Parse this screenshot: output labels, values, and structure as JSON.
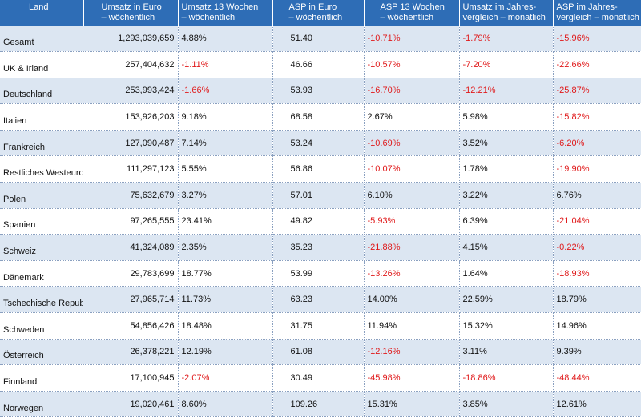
{
  "headers": [
    [
      "Land",
      ""
    ],
    [
      "Umsatz in Euro",
      "– wöchentlich"
    ],
    [
      "Umsatz 13 Wochen",
      "– wöchentlich"
    ],
    [
      "ASP in Euro",
      "– wöchentlich"
    ],
    [
      "ASP 13 Wochen",
      "– wöchentlich"
    ],
    [
      "Umsatz im Jahres-",
      "vergleich – monatlich"
    ],
    [
      "ASP im Jahres-",
      "vergleich – monatlich"
    ]
  ],
  "rows": [
    [
      "Gesamt",
      "1,293,039,659",
      "4.88%",
      "51.40",
      "-10.71%",
      "-1.79%",
      "-15.96%"
    ],
    [
      "UK & Irland",
      "257,404,632",
      "-1.11%",
      "46.66",
      "-10.57%",
      "-7.20%",
      "-22.66%"
    ],
    [
      "Deutschland",
      "253,993,424",
      "-1.66%",
      "53.93",
      "-16.70%",
      "-12.21%",
      "-25.87%"
    ],
    [
      "Italien",
      "153,926,203",
      "9.18%",
      "68.58",
      "2.67%",
      "5.98%",
      "-15.82%"
    ],
    [
      "Frankreich",
      "127,090,487",
      "7.14%",
      "53.24",
      "-10.69%",
      "3.52%",
      "-6.20%"
    ],
    [
      "Restliches Westeuropa",
      "111,297,123",
      "5.55%",
      "56.86",
      "-10.07%",
      "1.78%",
      "-19.90%"
    ],
    [
      "Polen",
      "75,632,679",
      "3.27%",
      "57.01",
      "6.10%",
      "3.22%",
      "6.76%"
    ],
    [
      "Spanien",
      "97,265,555",
      "23.41%",
      "49.82",
      "-5.93%",
      "6.39%",
      "-21.04%"
    ],
    [
      "Schweiz",
      "41,324,089",
      "2.35%",
      "35.23",
      "-21.88%",
      "4.15%",
      "-0.22%"
    ],
    [
      "Dänemark",
      "29,783,699",
      "18.77%",
      "53.99",
      "-13.26%",
      "1.64%",
      "-18.93%"
    ],
    [
      "Tschechische Republik",
      "27,965,714",
      "11.73%",
      "63.23",
      "14.00%",
      "22.59%",
      "18.79%"
    ],
    [
      "Schweden",
      "54,856,426",
      "18.48%",
      "31.75",
      "11.94%",
      "15.32%",
      "14.96%"
    ],
    [
      "Österreich",
      "26,378,221",
      "12.19%",
      "61.08",
      "-12.16%",
      "3.11%",
      "9.39%"
    ],
    [
      "Finnland",
      "17,100,945",
      "-2.07%",
      "30.49",
      "-45.98%",
      "-18.86%",
      "-48.44%"
    ],
    [
      "Norwegen",
      "19,020,461",
      "8.60%",
      "109.26",
      "15.31%",
      "3.85%",
      "12.61%"
    ]
  ],
  "colors": {
    "header_bg": "#2e6db6",
    "header_text": "#ffffff",
    "row_band": "#dce6f2",
    "negative": "#e0191a"
  }
}
